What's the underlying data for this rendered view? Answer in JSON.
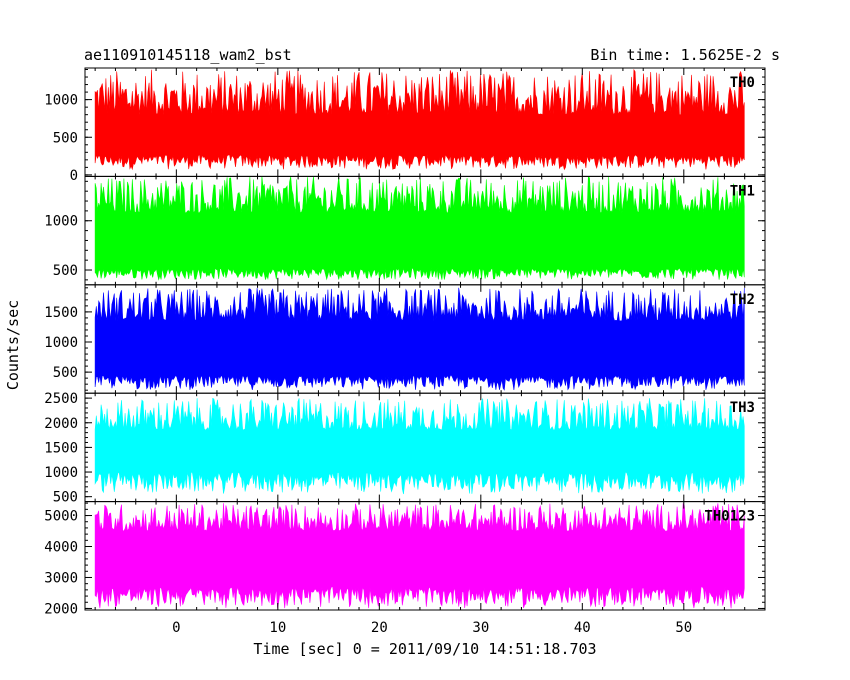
{
  "title_left": "ae110910145118_wam2_bst",
  "title_right": "Bin time: 1.5625E-2 s",
  "ylabel": "Counts/sec",
  "xlabel": "Time [sec] 0 = 2011/09/10 14:51:18.703",
  "chart_data": {
    "type": "line",
    "title": "ae110910145118_wam2_bst",
    "subtitle": "Bin time: 1.5625E-2 s",
    "xlabel": "Time [sec] 0 = 2011/09/10 14:51:18.703",
    "ylabel": "Counts/sec",
    "xlim": [
      -9,
      58
    ],
    "x_data_range": [
      -8,
      56
    ],
    "x_ticks": [
      0,
      10,
      20,
      30,
      40,
      50
    ],
    "grid": false,
    "series": [
      {
        "name": "TH0",
        "color": "#ff0000",
        "ylim": [
          -20,
          1420
        ],
        "y_ticks": [
          0,
          500,
          1000
        ],
        "band": {
          "lower_min": 70,
          "lower_max": 270,
          "upper_min": 800,
          "upper_max": 1400
        }
      },
      {
        "name": "TH1",
        "color": "#00ff00",
        "ylim": [
          350,
          1450
        ],
        "y_ticks": [
          500,
          1000
        ],
        "band": {
          "lower_min": 400,
          "lower_max": 520,
          "upper_min": 1080,
          "upper_max": 1450
        }
      },
      {
        "name": "TH2",
        "color": "#0000ff",
        "ylim": [
          150,
          1950
        ],
        "y_ticks": [
          500,
          1000,
          1500
        ],
        "band": {
          "lower_min": 200,
          "lower_max": 450,
          "upper_min": 1350,
          "upper_max": 1900
        }
      },
      {
        "name": "TH3",
        "color": "#00ffff",
        "ylim": [
          400,
          2600
        ],
        "y_ticks": [
          500,
          1000,
          1500,
          2000,
          2500
        ],
        "band": {
          "lower_min": 550,
          "lower_max": 1000,
          "upper_min": 1850,
          "upper_max": 2500
        }
      },
      {
        "name": "TH0123",
        "color": "#ff00ff",
        "ylim": [
          1950,
          5450
        ],
        "y_ticks": [
          2000,
          3000,
          4000,
          5000
        ],
        "band": {
          "lower_min": 2000,
          "lower_max": 2700,
          "upper_min": 4500,
          "upper_max": 5400
        }
      }
    ]
  }
}
